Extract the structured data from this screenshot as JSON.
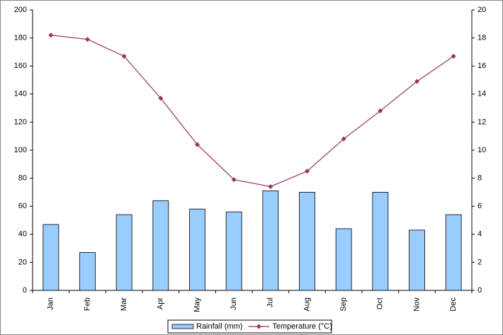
{
  "chart_data": {
    "type": "bar",
    "categories": [
      "Jan",
      "Feb",
      "Mar",
      "Apr",
      "May",
      "Jun",
      "Jul",
      "Aug",
      "Sep",
      "Oct",
      "Nov",
      "Dec"
    ],
    "series": [
      {
        "name": "Rainfall (mm)",
        "type": "bar",
        "color": "#99ccff",
        "values": [
          47,
          27,
          54,
          64,
          58,
          56,
          71,
          70,
          44,
          70,
          43,
          54
        ]
      },
      {
        "name": "Temperature (°C)",
        "type": "line",
        "axis": "y2",
        "color": "#993366",
        "values": [
          18.2,
          17.9,
          16.7,
          13.7,
          10.4,
          7.9,
          7.4,
          8.5,
          10.8,
          12.8,
          14.9,
          16.7
        ]
      }
    ],
    "ylim": [
      0,
      200
    ],
    "yticks": [
      0,
      20,
      40,
      60,
      80,
      100,
      120,
      140,
      160,
      180,
      200
    ],
    "y2lim": [
      0,
      20
    ],
    "y2ticks": [
      0,
      2,
      4,
      6,
      8,
      10,
      12,
      14,
      16,
      18,
      20
    ],
    "legend": "bottom"
  }
}
